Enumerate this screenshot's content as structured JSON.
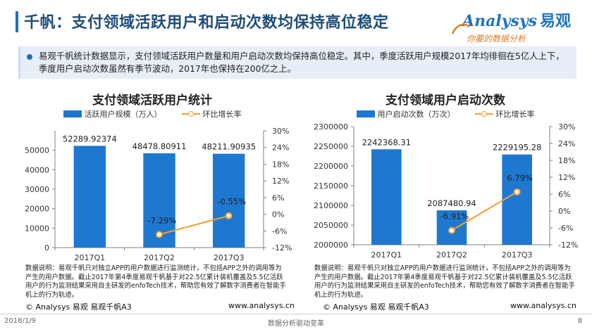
{
  "header": {
    "title": "千帆：支付领域活跃用户和启动次数均保持高位稳定",
    "logo_text": "Analysys",
    "logo_cn": "易观",
    "logo_tagline": "你要的数据分析"
  },
  "summary": {
    "text": "易观千帆统计数据显示，支付领域活跃用户数量和用户启动次数均保持高位稳定。其中，季度活跃用户规模2017年均徘徊在5亿人上下，季度用户启动次数虽然有季节波动，2017年也保持在200亿之上。"
  },
  "chart_data": [
    {
      "type": "bar",
      "title": "支付领域活跃用户统计",
      "categories": [
        "2017Q1",
        "2017Q2",
        "2017Q3"
      ],
      "series": [
        {
          "name": "活跃用户规模（万人）",
          "type": "bar",
          "values": [
            52289.92374,
            48478.80911,
            48211.90935
          ],
          "labels": [
            "52289.92374",
            "48478.80911",
            "48211.90935"
          ]
        },
        {
          "name": "环比增长率",
          "type": "line",
          "values": [
            null,
            -7.29,
            -0.55
          ],
          "labels": [
            "",
            "-7.29%",
            "-0.55%"
          ]
        }
      ],
      "ylim": [
        0,
        60000
      ],
      "yticks": [
        "0",
        "10000",
        "20000",
        "30000",
        "40000",
        "50000"
      ],
      "y2lim": [
        -12,
        30
      ],
      "y2ticks": [
        "-12%",
        "-6%",
        "0%",
        "6%",
        "12%",
        "18%",
        "24%",
        "30%"
      ],
      "legend_position": "top",
      "notes": "数据说明：易观千帆只对独立APP的用户数据进行监测统计，不包括APP之外的调用等为产生的用户数据。截止2017年第4季度易观千帆基于对22.5亿累计装机覆盖及5.5亿活跃用户的行为监测结果采用自主研发的enfoTech技术，帮助您有效了解数字消费者在智能手机上的行为轨迹。",
      "source": "© Analysys 易观 易观千帆A3",
      "url": "www.analysys.cn",
      "colors": {
        "bar": "#1e78d0",
        "line": "#f0a030",
        "axis": "#808080"
      }
    },
    {
      "type": "bar",
      "title": "支付领域用户启动次数",
      "categories": [
        "2017Q1",
        "2017Q2",
        "2017Q3"
      ],
      "series": [
        {
          "name": "用户启动次数（万次）",
          "type": "bar",
          "values": [
            2242368.31,
            2087480.94,
            2229195.28
          ],
          "labels": [
            "2242368.31",
            "2087480.94",
            "2229195.28"
          ]
        },
        {
          "name": "环比增长率",
          "type": "line",
          "values": [
            null,
            -6.91,
            6.79
          ],
          "labels": [
            "",
            "-6.91%",
            "6.79%"
          ]
        }
      ],
      "ylim": [
        2000000,
        2300000
      ],
      "yticks": [
        "2000000",
        "2050000",
        "2100000",
        "2150000",
        "2200000",
        "2250000",
        "2300000"
      ],
      "y2lim": [
        -12,
        30
      ],
      "y2ticks": [
        "-12%",
        "-6%",
        "0%",
        "6%",
        "12%",
        "18%",
        "24%",
        "30%"
      ],
      "legend_position": "top",
      "notes": "数据说明：易观千帆只对独立APP的用户数据进行监测统计，不包括APP之外的调用等为产生的用户数据。截止2017年第4季度易观千帆基于对22.5亿累计装机覆盖及5.5亿活跃用户的行为监测结果采用自主研发的enfoTech技术，帮助您有效了解数字消费者在智能手机上的行为轨迹。",
      "source": "© Analysys 易观 易观千帆A3",
      "url": "www.analysys.cn",
      "colors": {
        "bar": "#1e78d0",
        "line": "#f0a030",
        "axis": "#808080"
      }
    }
  ],
  "footer": {
    "date": "2018/1/9",
    "center": "数据分析驱动变革",
    "page": "8"
  }
}
